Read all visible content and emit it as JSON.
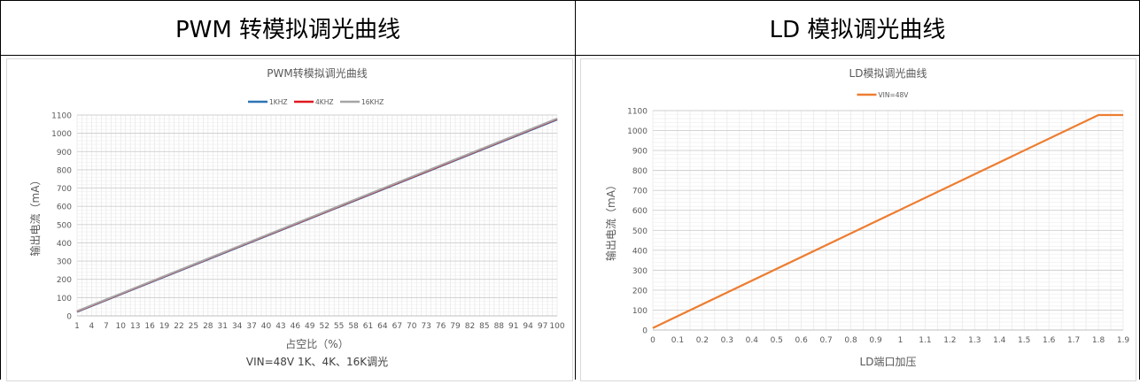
{
  "headers": [
    "PWM 转模拟调光曲线",
    "LD 模拟调光曲线"
  ],
  "chart_data": [
    {
      "type": "line",
      "title": "PWM转模拟调光曲线",
      "xlabel": "占空比（%）",
      "ylabel": "输出电流（mA）",
      "note": "VIN=48V 1K、4K、16K调光",
      "ylim": [
        0,
        1100
      ],
      "yticks": [
        0,
        100,
        200,
        300,
        400,
        500,
        600,
        700,
        800,
        900,
        1000,
        1100
      ],
      "xticks": [
        1,
        4,
        7,
        10,
        13,
        16,
        19,
        22,
        25,
        28,
        31,
        34,
        37,
        40,
        43,
        46,
        49,
        52,
        55,
        58,
        61,
        64,
        67,
        70,
        73,
        76,
        79,
        82,
        85,
        88,
        91,
        94,
        97,
        100
      ],
      "xlim": [
        1,
        100
      ],
      "grid": true,
      "legend_position": "top",
      "series": [
        {
          "name": "1KHZ",
          "color": "#2e75b6",
          "x": [
            1,
            100
          ],
          "y": [
            22,
            1075
          ]
        },
        {
          "name": "4KHZ",
          "color": "#e0191f",
          "x": [
            1,
            100
          ],
          "y": [
            24,
            1078
          ]
        },
        {
          "name": "16KHZ",
          "color": "#a5a5a5",
          "x": [
            1,
            100
          ],
          "y": [
            26,
            1081
          ]
        }
      ]
    },
    {
      "type": "line",
      "title": "LD模拟调光曲线",
      "xlabel": "LD端口加压",
      "ylabel": "输出电流（mA）",
      "ylim": [
        0,
        1100
      ],
      "yticks": [
        0,
        100,
        200,
        300,
        400,
        500,
        600,
        700,
        800,
        900,
        1000,
        1100
      ],
      "xticks": [
        "0",
        "0.1",
        "0.2",
        "0.3",
        "0.4",
        "0.5",
        "0.6",
        "0.7",
        "0.8",
        "0.9",
        "1",
        "1.1",
        "1.2",
        "1.3",
        "1.4",
        "1.5",
        "1.6",
        "1.7",
        "1.8",
        "1.9"
      ],
      "xlim": [
        0,
        1.9
      ],
      "grid": true,
      "legend_position": "top",
      "series": [
        {
          "name": "VIN=48V",
          "color": "#ed7d31",
          "x": [
            0,
            1.8,
            1.9
          ],
          "y": [
            10,
            1078,
            1078
          ]
        }
      ]
    }
  ]
}
